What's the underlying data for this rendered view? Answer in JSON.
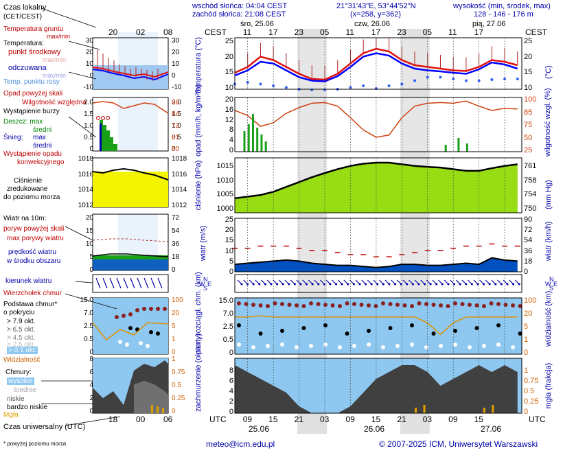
{
  "header": {
    "sunrise": "wschód słońca: 04:04 CEST",
    "sunset": "zachód słońca: 21:08 CEST",
    "coords": "21°31'43\"E, 53°44'52\"N",
    "grid": "(x=258, y=362)",
    "height_title": "wysokość (min, środek, max)",
    "height_values": "128 - 146 - 176 m"
  },
  "legend": {
    "local_time": "Czas lokalny",
    "local_time_sub": "(CET/CEST)",
    "local_ticks": [
      "20",
      "02",
      "08"
    ],
    "soil_temp": "Temperatura gruntu",
    "soil_temp_sub": "max/min",
    "temp_title": "Temperatura:",
    "temp_mid": "punkt środkowy",
    "temp_maxmin": "max/min",
    "temp_felt": "odczuwana",
    "temp_felt_maxmin": "max/min",
    "dewpoint": "Temp. punktu rosy",
    "precip_over": "Opad powyżej skali",
    "humidity": "Wilgotność względna",
    "storm": "Wystąpienie burzy",
    "rain": "Deszcz: max",
    "rain_mid": "średni",
    "snow": "Śnieg:",
    "snow_max": "max",
    "snow_mid": "średni",
    "conv": "Wystąpienie opadu",
    "conv2": "konwekcyjnego",
    "pressure1": "Ciśnienie",
    "pressure2": "zredukowane",
    "pressure3": "do poziomu morza",
    "wind_title": "Wiatr na 10m:",
    "gust_over": "poryw powyżej skali",
    "gust_max": "max porywy wiatru",
    "wind_avg": "prędkość wiatru",
    "wind_avg2": "w środku obszaru",
    "wind_dir": "kierunek wiatru",
    "swirl": "Wierzchołek chmur",
    "base1": "Podstawa chmur*",
    "base2": "o pokryciu",
    "okt": [
      "> 7.9 okt.",
      "> 6.5 okt.",
      "> 4.5 okt.",
      "> 2.5 okt.",
      "> 0.1 okt."
    ],
    "visibility": "Widzialność",
    "clouds": "Chmury:",
    "clouds_high": "wysokie",
    "clouds_mid": "średnie",
    "clouds_low": "niskie",
    "clouds_vlow": "bardzo niskie",
    "fog": "Mgła",
    "utc": "Czas uniwersalny (UTC)",
    "utc_ticks": [
      "18",
      "00",
      "06"
    ],
    "footnote": "* powyżej poziomu morza"
  },
  "legend_axes": {
    "temp_left": [
      "30",
      "20",
      "10",
      "0",
      "-10"
    ],
    "temp_right": [
      "30",
      "20",
      "10",
      "0",
      "-10"
    ],
    "precip_left": [
      "2.0",
      "1.5",
      "1.0",
      "0.5",
      "0"
    ],
    "precip_right": [
      "96",
      "84",
      "73",
      "61",
      "50"
    ],
    "press_left": [
      "1018",
      "1016",
      "1014",
      "1012"
    ],
    "press_right": [
      "1018",
      "1016",
      "1014",
      "1012"
    ],
    "wind_left": [
      "20",
      "15",
      "10",
      "5",
      "0"
    ],
    "wind_right": [
      "72",
      "54",
      "36",
      "18",
      "0"
    ],
    "cloud_left": [
      "15.0",
      "7.0",
      "2.5",
      "0.5",
      "0"
    ],
    "cloud_right": [
      "100",
      "20",
      "5",
      "1",
      "0"
    ],
    "cloud_cov_left": [
      "8",
      "6",
      "4",
      "2",
      "0"
    ],
    "cloud_cov_right": [
      "1",
      "0.75",
      "0.5",
      "0.25",
      "0"
    ]
  },
  "main": {
    "cest": "CEST",
    "utc": "UTC",
    "days_top": [
      "śro, 25.06",
      "czw, 26.06",
      "pią, 27.06"
    ],
    "days_bottom": [
      "25.06",
      "26.06",
      "27.06"
    ],
    "top_ticks": [
      "11",
      "17",
      "23",
      "05",
      "11",
      "17",
      "23",
      "05",
      "11",
      "17"
    ],
    "bottom_ticks": [
      "09",
      "15",
      "21",
      "03",
      "09",
      "15",
      "21",
      "03",
      "09",
      "15"
    ],
    "panel_labels": {
      "temp": "temperatura (°C)",
      "temp_r": "(°C)",
      "precip": "opad (mm/h, kg/m²/h)",
      "humid_r": "wilgotność wzgl. (%)",
      "press": "ciśnienie (hPa)",
      "press_r": "(mm Hg)",
      "wind": "wiatr (m/s)",
      "wind_r": "wiatr (km/h)",
      "cloud": "pion. rozciągł. chm. (km)",
      "vis_r": "widzialność (km)",
      "cover": "zachmurzenie (oktanty)",
      "fog_r": "mgła (frakcja)",
      "dirN": "N",
      "dirW": "W",
      "dirS": "S",
      "dirE": "E"
    },
    "axes": {
      "temp_left": [
        "25",
        "20",
        "15",
        "10"
      ],
      "temp_right": [
        "25",
        "20",
        "15",
        "10"
      ],
      "precip_left": [
        "20",
        "16",
        "12",
        "8",
        "4",
        "0"
      ],
      "precip_right": [
        "100",
        "85",
        "75",
        "50",
        "25"
      ],
      "press_left": [
        "1015",
        "1010",
        "1005",
        "1000"
      ],
      "press_right": [
        "761",
        "758",
        "754",
        "750"
      ],
      "wind_left": [
        "25",
        "20",
        "15",
        "10",
        "5",
        "0"
      ],
      "wind_right": [
        "90",
        "72",
        "54",
        "36",
        "18",
        "0"
      ],
      "cloud_left": [
        "15.0",
        "7.0",
        "2.5",
        "0.5",
        "0"
      ],
      "cloud_right": [
        "100",
        "20",
        "5",
        "1",
        "0"
      ],
      "cover_left": [
        "8",
        "6",
        "4",
        "2",
        "0"
      ],
      "cover_right": [
        "1",
        "0.75",
        "0.5",
        "0.25",
        "0"
      ]
    }
  },
  "footer": {
    "email": "meteo@icm.edu.pl",
    "copyright": "© 2007-2025 ICM, Uniwersytet Warszawski"
  },
  "colors": {
    "temp_line": "#e01010",
    "felt_line": "#0000ff",
    "dewpoint": "#3060ff",
    "humidity": "#d04010",
    "pressure_line": "#000000",
    "wind_line": "#000000",
    "gust_dash": "#c00000",
    "visibility_line": "#e09000",
    "sky": "#8ec8f0",
    "night": "#e0e0e0"
  },
  "chart_data": [
    {
      "type": "line",
      "title": "temperatura",
      "ylabel": "(°C)",
      "ylim": [
        10,
        25
      ],
      "x_hours_utc": [
        6,
        9,
        12,
        15,
        18,
        21,
        24,
        27,
        30,
        33,
        36,
        39,
        42,
        45,
        48,
        51,
        54,
        57,
        60,
        63,
        66,
        69,
        72
      ],
      "series": [
        {
          "name": "punkt środkowy",
          "values": [
            14.8,
            16.5,
            19.5,
            18.5,
            16.5,
            14.5,
            13.0,
            12.8,
            14.5,
            17.5,
            20.5,
            21.8,
            21.0,
            18.5,
            17.0,
            16.5,
            16.0,
            15.5,
            15.3,
            16.5,
            18.5,
            18.0,
            17.0
          ]
        },
        {
          "name": "odczuwana",
          "values": [
            14.0,
            15.5,
            18.0,
            17.5,
            15.5,
            13.5,
            12.5,
            12.3,
            13.8,
            16.5,
            19.5,
            20.5,
            19.8,
            17.5,
            16.0,
            15.5,
            15.2,
            14.8,
            14.5,
            15.8,
            17.8,
            17.2,
            16.0
          ]
        },
        {
          "name": "Temp. punktu rosy",
          "values": [
            11.5,
            12.0,
            11.5,
            11.0,
            10.5,
            10.0,
            9.8,
            9.8,
            10.0,
            10.5,
            11.0,
            10.2,
            11.0,
            11.5,
            12.5,
            13.5,
            13.5,
            13.0,
            12.5,
            12.5,
            12.8,
            13.0,
            13.0
          ]
        }
      ]
    },
    {
      "type": "line",
      "title": "wilgotność wzgl.",
      "ylabel": "(%)",
      "ylim": [
        25,
        100
      ],
      "x_hours_utc": [
        6,
        9,
        12,
        15,
        18,
        21,
        24,
        27,
        30,
        33,
        36,
        39,
        42,
        45,
        48,
        51,
        54,
        57,
        60,
        63,
        66,
        69,
        72
      ],
      "series": [
        {
          "name": "Wilgotność względna",
          "values": [
            82,
            75,
            60,
            65,
            78,
            86,
            92,
            93,
            88,
            72,
            55,
            45,
            48,
            72,
            88,
            92,
            93,
            92,
            95,
            88,
            82,
            85,
            84
          ]
        }
      ]
    },
    {
      "type": "area",
      "title": "ciśnienie",
      "ylabel": "(hPa)",
      "ylim": [
        1000,
        1017
      ],
      "x_hours_utc": [
        6,
        9,
        12,
        15,
        18,
        21,
        24,
        27,
        30,
        33,
        36,
        39,
        42,
        45,
        48,
        51,
        54,
        57,
        60,
        63,
        66,
        69,
        72
      ],
      "series": [
        {
          "name": "ciśnienie",
          "values": [
            1004.5,
            1005.0,
            1005.5,
            1006.5,
            1008.0,
            1009.5,
            1011.0,
            1012.3,
            1013.5,
            1014.5,
            1015.2,
            1015.5,
            1015.5,
            1015.0,
            1014.5,
            1014.2,
            1014.0,
            1013.5,
            1013.0,
            1013.0,
            1013.8,
            1014.5,
            1015.0
          ]
        }
      ]
    },
    {
      "type": "line",
      "title": "wiatr",
      "ylabel": "(m/s)",
      "ylim": [
        0,
        25
      ],
      "x_hours_utc": [
        6,
        9,
        12,
        15,
        18,
        21,
        24,
        27,
        30,
        33,
        36,
        39,
        42,
        45,
        48,
        51,
        54,
        57,
        60,
        63,
        66,
        69,
        72
      ],
      "series": [
        {
          "name": "prędkość wiatru",
          "values": [
            3.5,
            4.0,
            4.5,
            5.0,
            5.5,
            5.0,
            4.0,
            3.5,
            3.0,
            3.0,
            2.5,
            2.0,
            2.5,
            3.5,
            3.5,
            3.0,
            3.0,
            3.5,
            4.0,
            3.5,
            6.5,
            5.5,
            5.0
          ]
        },
        {
          "name": "max porywy wiatru",
          "values": [
            11,
            11,
            12,
            12,
            12,
            11,
            10,
            10,
            9,
            8,
            8,
            7,
            7,
            8,
            9,
            10,
            10,
            11,
            12,
            12,
            13,
            12,
            12
          ]
        }
      ]
    },
    {
      "type": "line",
      "title": "widzialność",
      "ylabel": "(km)",
      "ylim": [
        0,
        100
      ],
      "x_hours_utc": [
        6,
        9,
        12,
        15,
        18,
        21,
        24,
        27,
        30,
        33,
        36,
        39,
        42,
        45,
        48,
        51,
        54,
        57,
        60,
        63,
        66,
        69,
        72
      ],
      "series": [
        {
          "name": "Widzialność",
          "values": [
            20,
            20,
            22,
            20,
            20,
            20,
            20,
            20,
            20,
            20,
            20,
            20,
            20,
            20,
            20,
            12,
            4,
            12,
            20,
            20,
            20,
            20,
            20
          ]
        }
      ]
    }
  ]
}
